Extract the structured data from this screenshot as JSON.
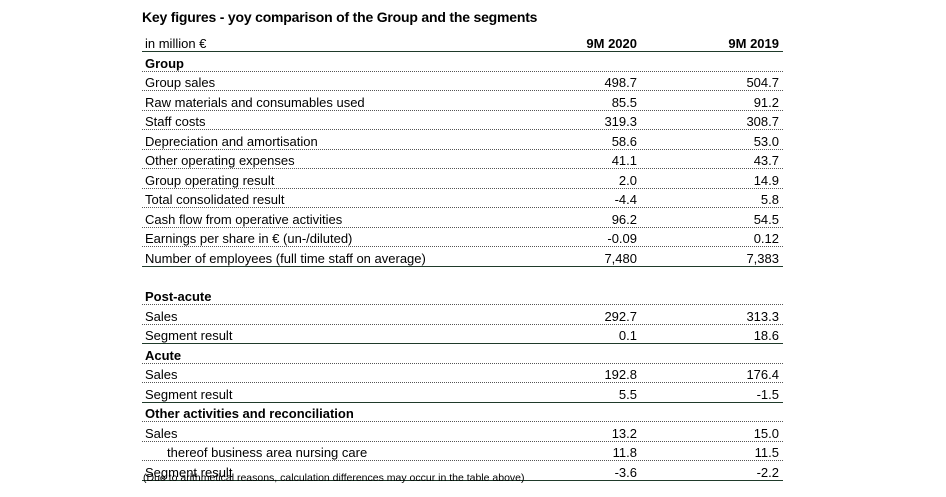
{
  "title": "Key figures - yoy comparison of the Group and the segments",
  "unit_label": "in million €",
  "columns": [
    "9M 2020",
    "9M 2019"
  ],
  "group": {
    "heading": "Group",
    "rows": [
      {
        "label": "Group sales",
        "v2020": "498.7",
        "v2019": "504.7"
      },
      {
        "label": "Raw materials and consumables used",
        "v2020": "85.5",
        "v2019": "91.2"
      },
      {
        "label": "Staff costs",
        "v2020": "319.3",
        "v2019": "308.7"
      },
      {
        "label": "Depreciation and amortisation",
        "v2020": "58.6",
        "v2019": "53.0"
      },
      {
        "label": "Other operating expenses",
        "v2020": "41.1",
        "v2019": "43.7"
      },
      {
        "label": "Group operating result",
        "v2020": "2.0",
        "v2019": "14.9"
      },
      {
        "label": "Total consolidated result",
        "v2020": "-4.4",
        "v2019": "5.8"
      },
      {
        "label": "Cash flow from operative activities",
        "v2020": "96.2",
        "v2019": "54.5"
      },
      {
        "label": "Earnings per share in € (un-/diluted)",
        "v2020": "-0.09",
        "v2019": "0.12"
      },
      {
        "label": "Number of employees  (full time staff on average)",
        "v2020": "7,480",
        "v2019": "7,383"
      }
    ]
  },
  "post_acute": {
    "heading": "Post-acute",
    "rows": [
      {
        "label": "Sales",
        "v2020": "292.7",
        "v2019": "313.3"
      },
      {
        "label": "Segment result",
        "v2020": "0.1",
        "v2019": "18.6"
      }
    ]
  },
  "acute": {
    "heading": "Acute",
    "rows": [
      {
        "label": "Sales",
        "v2020": "192.8",
        "v2019": "176.4"
      },
      {
        "label": "Segment result",
        "v2020": "5.5",
        "v2019": "-1.5"
      }
    ]
  },
  "other": {
    "heading": "Other activities and reconciliation",
    "rows": [
      {
        "label": "Sales",
        "v2020": "13.2",
        "v2019": "15.0"
      },
      {
        "label": "thereof business area nursing care",
        "v2020": "11.8",
        "v2019": "11.5"
      },
      {
        "label": "Segment result",
        "v2020": "-3.6",
        "v2019": "-2.2"
      }
    ]
  },
  "footnote": "(Due to arithmetical reasons, calculation differences may occur in the table above)"
}
